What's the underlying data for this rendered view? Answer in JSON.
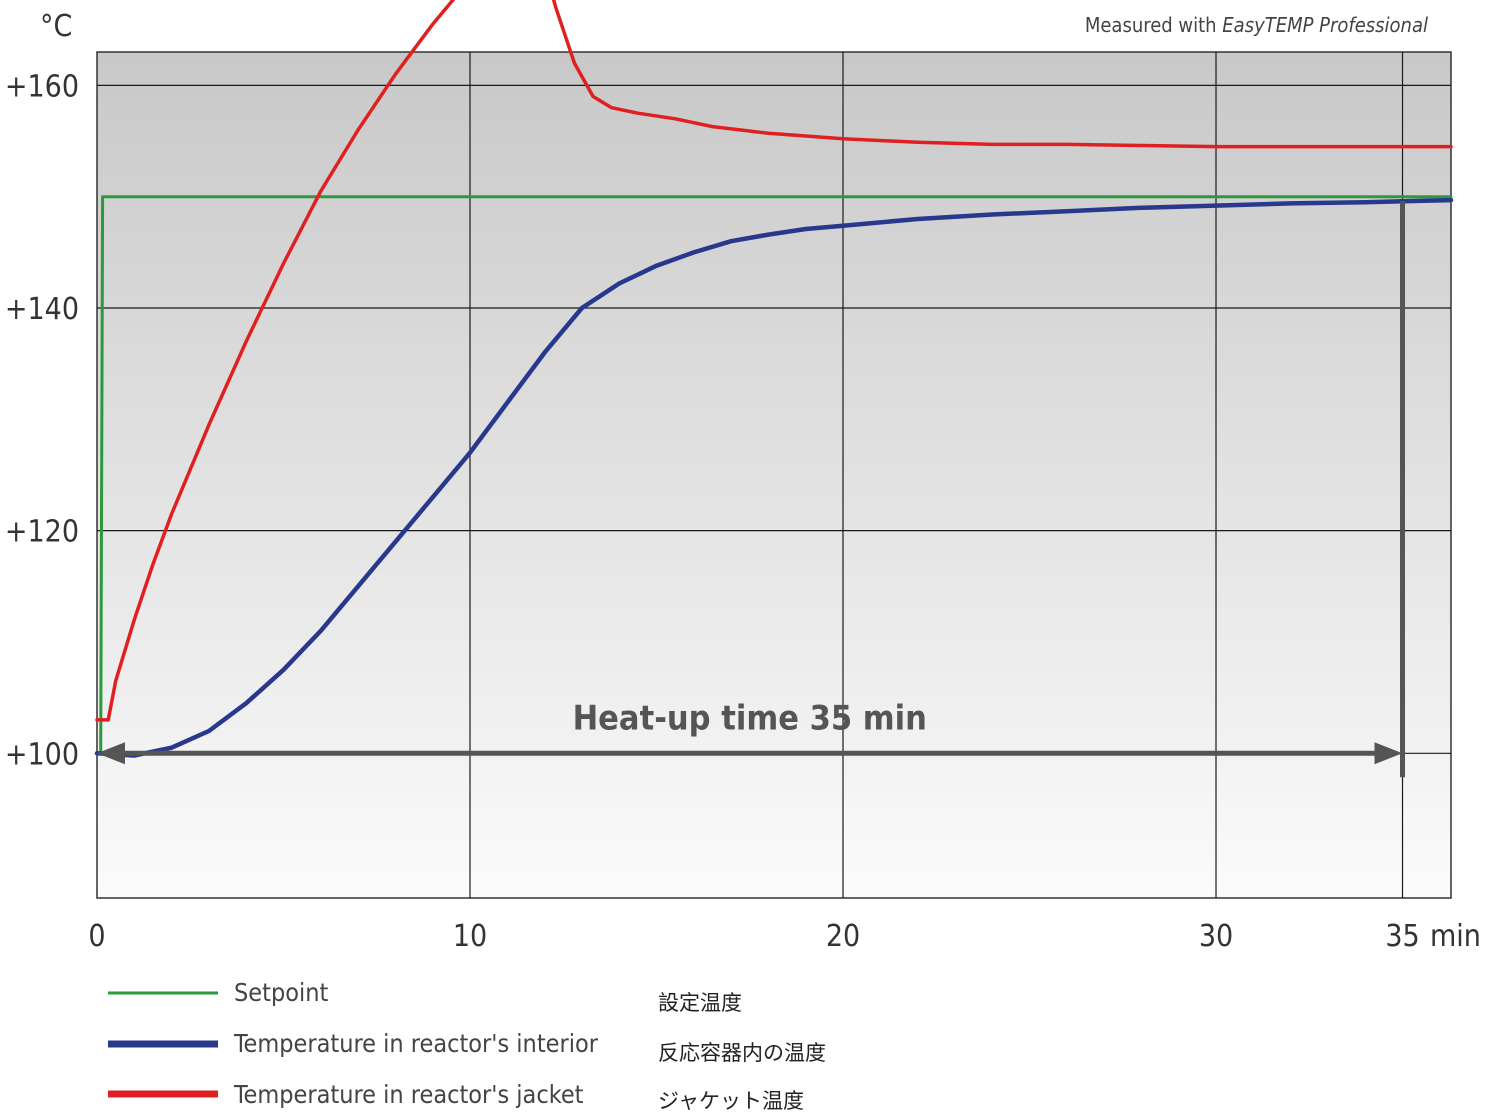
{
  "chart_data": {
    "type": "line",
    "y_unit": "°C",
    "x_unit": "min",
    "note_prefix": "Measured with ",
    "note_product": "EasyTEMP Professional",
    "xlim": [
      0,
      36.3
    ],
    "ylim": [
      87,
      163
    ],
    "x_ticks": [
      {
        "value": 0,
        "label": "0"
      },
      {
        "value": 10,
        "label": "10"
      },
      {
        "value": 20,
        "label": "20"
      },
      {
        "value": 30,
        "label": "30"
      },
      {
        "value": 35,
        "label": "35"
      }
    ],
    "y_ticks": [
      {
        "value": 100,
        "label": "+100"
      },
      {
        "value": 120,
        "label": "+120"
      },
      {
        "value": 140,
        "label": "+140"
      },
      {
        "value": 160,
        "label": "+160"
      }
    ],
    "annotation": {
      "text": "Heat-up time 35 min",
      "x_start": 0,
      "x_end": 35,
      "y": 100
    },
    "series": [
      {
        "name": "Setpoint",
        "name_jp": "設定温度",
        "color": "#2a9a3a",
        "x": [
          0,
          0.1,
          0.15,
          36.3
        ],
        "y": [
          100,
          100,
          150,
          150
        ]
      },
      {
        "name": "Temperature in reactor's interior",
        "name_jp": "反応容器内の温度",
        "color": "#28388c",
        "x": [
          0,
          1,
          2,
          3,
          4,
          5,
          6,
          7,
          8,
          9,
          10,
          11,
          12,
          13,
          14,
          15,
          16,
          17,
          18,
          19,
          20,
          22,
          24,
          26,
          28,
          30,
          32,
          34,
          35,
          36.3
        ],
        "y": [
          100,
          99.8,
          100.5,
          102,
          104.5,
          107.5,
          111,
          115,
          119,
          123,
          127,
          131.5,
          136,
          140,
          142.2,
          143.8,
          145,
          146,
          146.6,
          147.1,
          147.4,
          148,
          148.4,
          148.7,
          149,
          149.2,
          149.4,
          149.5,
          149.6,
          149.7
        ]
      },
      {
        "name": "Temperature in reactor's jacket",
        "name_jp": "ジャケット温度",
        "color": "#e02020",
        "x": [
          0,
          0.15,
          0.3,
          0.5,
          1,
          1.5,
          2,
          3,
          4,
          5,
          6,
          7,
          8,
          9,
          10,
          11,
          11.5,
          11.8,
          12.3,
          12.8,
          13.3,
          13.8,
          14.5,
          15.5,
          16.5,
          18,
          20,
          22,
          24,
          26,
          28,
          30,
          32,
          34,
          36.3
        ],
        "y": [
          103,
          103,
          103,
          106.5,
          112,
          117,
          121.5,
          129.5,
          137,
          144,
          150.5,
          156,
          161,
          165.5,
          169.5,
          173,
          175,
          173,
          167,
          162,
          159,
          158,
          157.5,
          157,
          156.3,
          155.7,
          155.2,
          154.9,
          154.7,
          154.7,
          154.6,
          154.5,
          154.5,
          154.5,
          154.5
        ]
      }
    ]
  }
}
